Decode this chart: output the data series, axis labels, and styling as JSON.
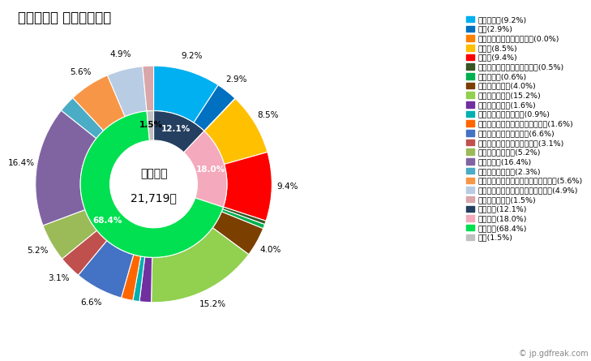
{
  "title": "２０２０年 萩市の就業者",
  "center_text_line1": "就業者数",
  "center_text_line2": "21,719人",
  "watermark": "© jp.gdfreak.com",
  "outer_ring": [
    {
      "label": "農業，林業(9.2%)",
      "value": 9.2,
      "color": "#00B0F0",
      "show_label": "9.2%"
    },
    {
      "label": "漁業(2.9%)",
      "value": 2.9,
      "color": "#0070C0",
      "show_label": "2.9%"
    },
    {
      "label": "鉱業，採石業，砂利採取業(0.0%)",
      "value": 0.05,
      "color": "#FF8000",
      "show_label": ""
    },
    {
      "label": "建設業(8.5%)",
      "value": 8.5,
      "color": "#FFC000",
      "show_label": "8.5%"
    },
    {
      "label": "製造業(9.4%)",
      "value": 9.4,
      "color": "#FF0000",
      "show_label": "9.4%"
    },
    {
      "label": "電気・ガス・熱供給・水道業(0.5%)",
      "value": 0.5,
      "color": "#375623",
      "show_label": ""
    },
    {
      "label": "情報通信業(0.6%)",
      "value": 0.6,
      "color": "#00B050",
      "show_label": ""
    },
    {
      "label": "運輸業，郵便業(4.0%)",
      "value": 4.0,
      "color": "#7B3F00",
      "show_label": "4.0%"
    },
    {
      "label": "卸売業，小売業(15.2%)",
      "value": 15.2,
      "color": "#92D050",
      "show_label": "15.2%"
    },
    {
      "label": "金融業，保険業(1.6%)",
      "value": 1.6,
      "color": "#7030A0",
      "show_label": ""
    },
    {
      "label": "不動産業，物品賃貸業(0.9%)",
      "value": 0.9,
      "color": "#00B0B0",
      "show_label": ""
    },
    {
      "label": "学術研究，専門・技術サービス業(1.6%)",
      "value": 1.6,
      "color": "#FF6600",
      "show_label": ""
    },
    {
      "label": "宿泊業，飲食サービス業(6.6%)",
      "value": 6.6,
      "color": "#4472C4",
      "show_label": "6.6%"
    },
    {
      "label": "生活関連サービス業，娯楽業(3.1%)",
      "value": 3.1,
      "color": "#C0504D",
      "show_label": "3.1%"
    },
    {
      "label": "教育，学習支援業(5.2%)",
      "value": 5.2,
      "color": "#9BBB59",
      "show_label": "5.2%"
    },
    {
      "label": "医療，福祉(16.4%)",
      "value": 16.4,
      "color": "#8064A2",
      "show_label": "16.4%"
    },
    {
      "label": "複合サービス事業(2.3%)",
      "value": 2.3,
      "color": "#4BACC6",
      "show_label": ""
    },
    {
      "label": "サービス業（他に分類されないもの）(5.6%)",
      "value": 5.6,
      "color": "#F79646",
      "show_label": "5.6%"
    },
    {
      "label": "公務（他に分類されるものを除く）(4.9%)",
      "value": 4.9,
      "color": "#B8CCE4",
      "show_label": "4.9%"
    },
    {
      "label": "分類不能の産業(1.5%)",
      "value": 1.5,
      "color": "#D9A6A9",
      "show_label": ""
    }
  ],
  "inner_ring": [
    {
      "label": "一次産業(12.1%)",
      "value": 12.1,
      "color": "#243F60",
      "show_label": "12.1%"
    },
    {
      "label": "二次産業(18.0%)",
      "value": 18.0,
      "color": "#F4AABC",
      "show_label": "18.0%"
    },
    {
      "label": "三次産業(68.4%)",
      "value": 68.4,
      "color": "#00E050",
      "show_label": "68.4%"
    },
    {
      "label": "不明(1.5%)",
      "value": 1.5,
      "color": "#C0C0C0",
      "show_label": "1.5%"
    }
  ]
}
